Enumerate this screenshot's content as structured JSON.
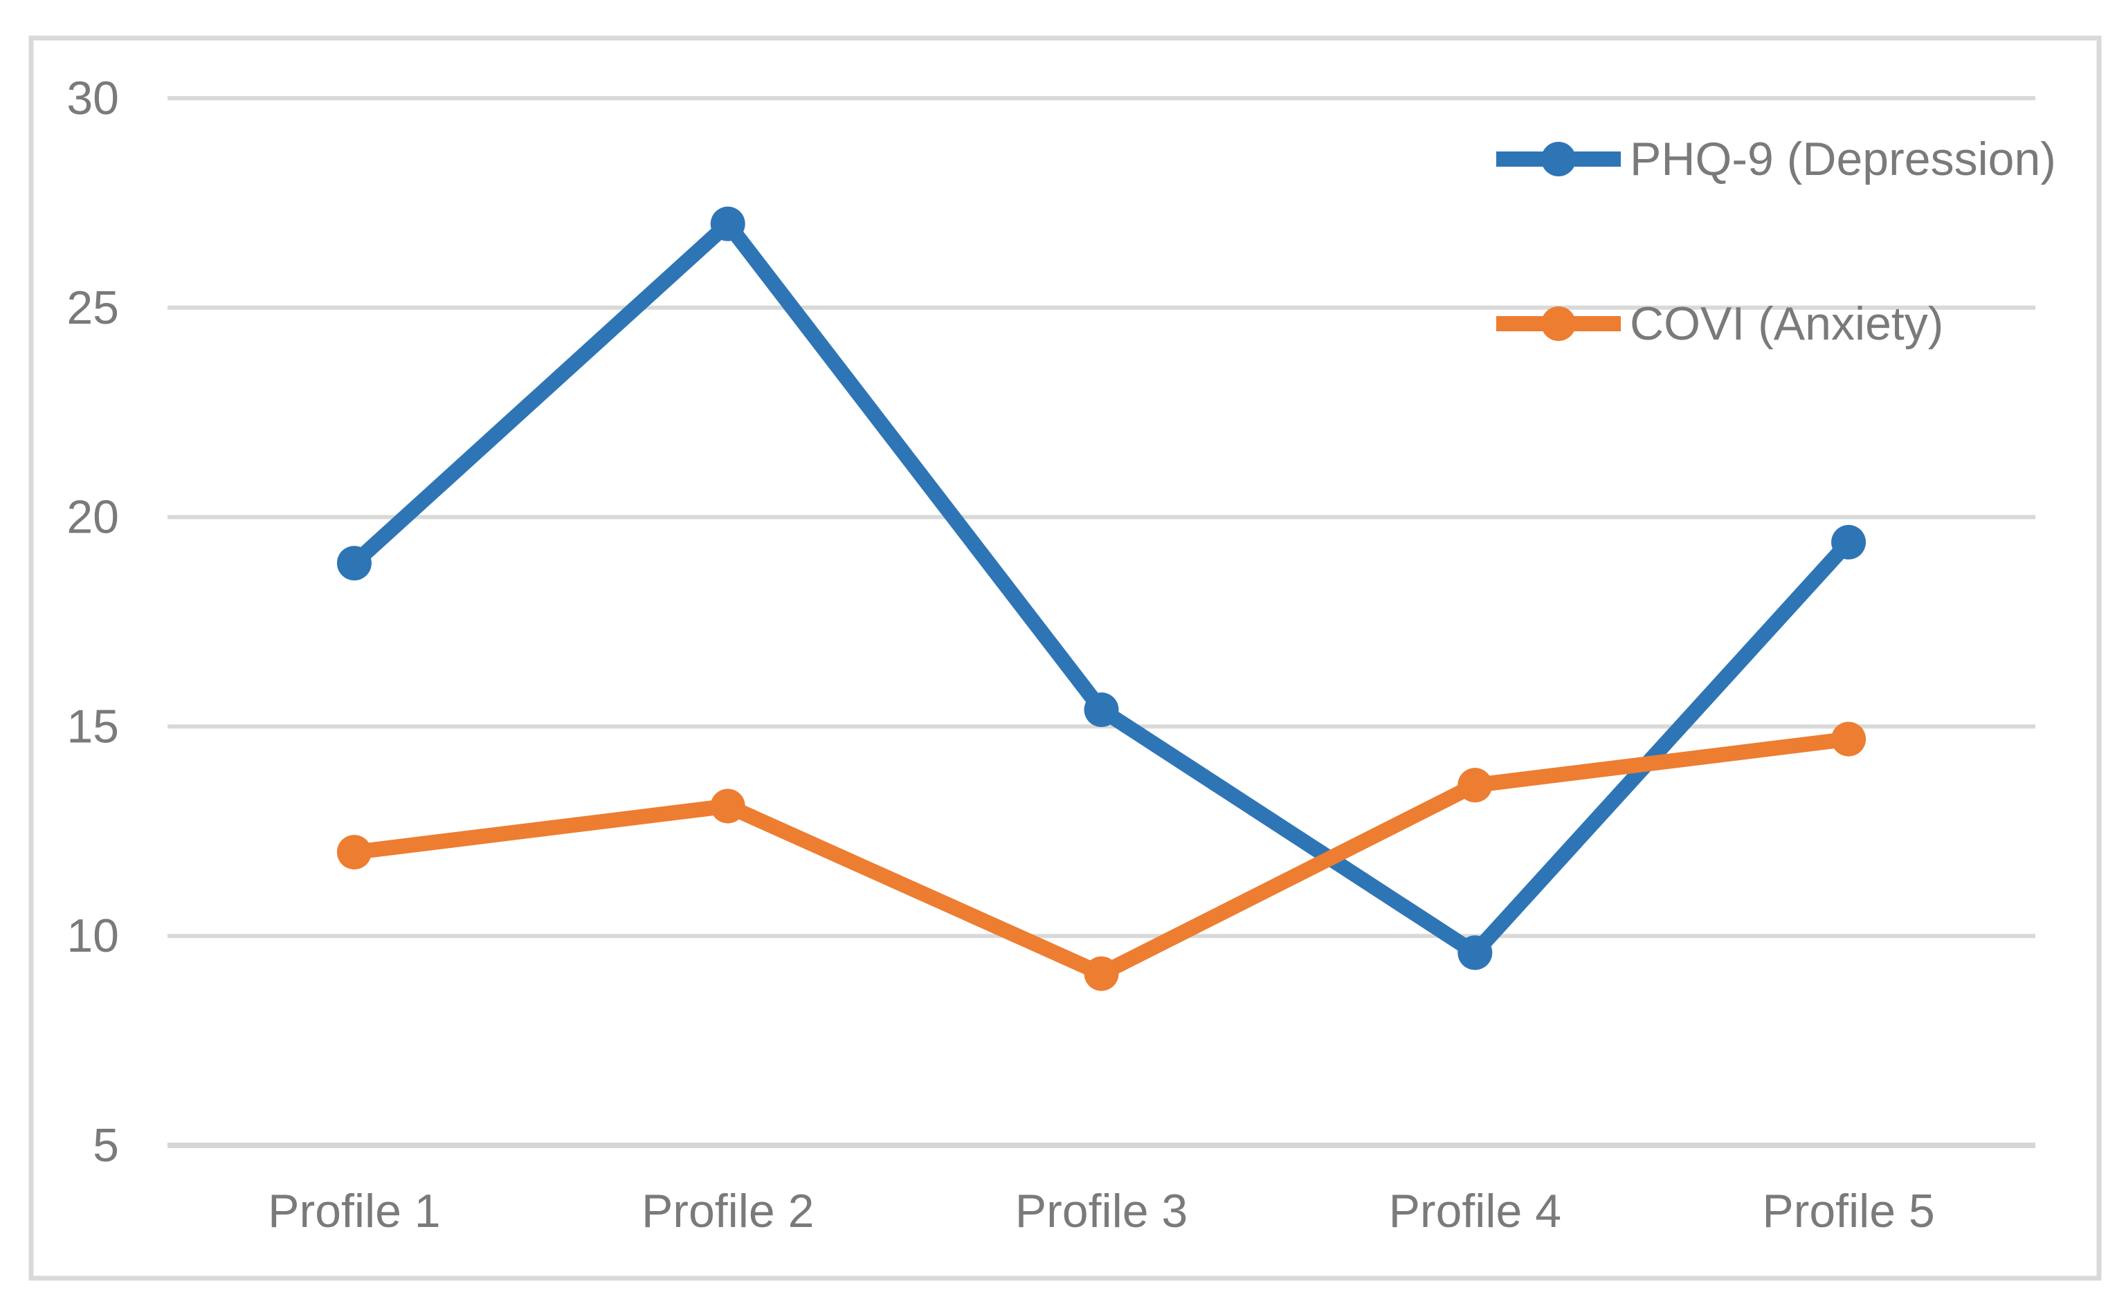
{
  "figure": {
    "background": "#FFFFFF",
    "border_color": "#D9D9D9"
  },
  "chart_data": {
    "type": "line",
    "title": "",
    "xlabel": "",
    "ylabel": "",
    "categories": [
      "Profile 1",
      "Profile 2",
      "Profile 3",
      "Profile 4",
      "Profile 5"
    ],
    "series": [
      {
        "name": "PHQ-9 (Depression)",
        "values": [
          18.9,
          27.0,
          15.4,
          9.6,
          19.4
        ],
        "color": "#2E75B6"
      },
      {
        "name": "COVI (Anxiety)",
        "values": [
          12.0,
          13.1,
          9.1,
          13.6,
          14.7
        ],
        "color": "#ED7D31"
      }
    ],
    "ylim": [
      5,
      30
    ],
    "yticks": [
      5,
      10,
      15,
      20,
      25,
      30
    ],
    "grid": true,
    "gridline_color": "#D9D9D9",
    "axis_line_color": "#D6D6D6",
    "text_color": "#7A7A7A",
    "legend_position": "inside-top-right",
    "marker": "circle"
  }
}
